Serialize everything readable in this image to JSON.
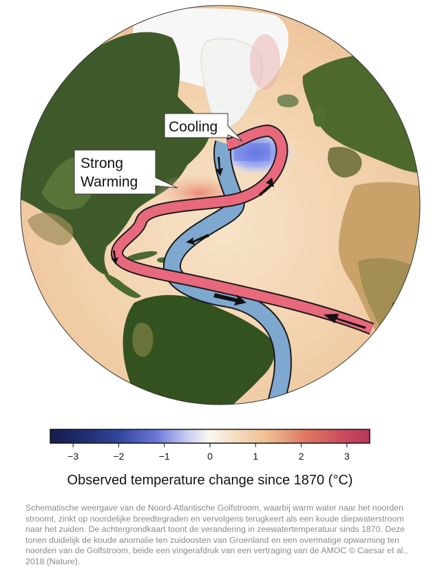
{
  "labels": {
    "cooling": "Cooling",
    "strong_warming_line1": "Strong",
    "strong_warming_line2": "Warming"
  },
  "colorbar": {
    "title": "Observed temperature change since 1870 (°C)",
    "ticks": [
      "−3",
      "−2",
      "−1",
      "0",
      "1",
      "2",
      "3"
    ],
    "tick_values": [
      -3,
      -2,
      -1,
      0,
      1,
      2,
      3
    ],
    "range": [
      -3.5,
      3.5
    ],
    "colors": [
      "#151e4a",
      "#2c3c8c",
      "#6a75d6",
      "#fbf8f0",
      "#f0c397",
      "#e07860",
      "#b8365a"
    ]
  },
  "currents": {
    "warm_surface_color": "#e8687c",
    "cold_deep_color": "#7ea8d0",
    "outline_color": "#1a1a1a"
  },
  "caption": "Schematische weergave van de Noord-Atlantische Golfstroom, waarbij warm water naar het noorden stroomt, zinkt op noordelijke breedtegraden en vervolgens terugkeert als een koude diepwaterstroom naar het zuiden. De achtergrondkaart toont de verandering in zeewatertemperatuur sinds 1870. Deze tonen duidelijk de koude anomalie ten zuidoosten van Groenland en een overmatige opwarming ten noorden van de Golfstroom, beide een vingerafdruk van een vertraging van de AMOC © Caesar et al., 2018 (Nature)."
}
